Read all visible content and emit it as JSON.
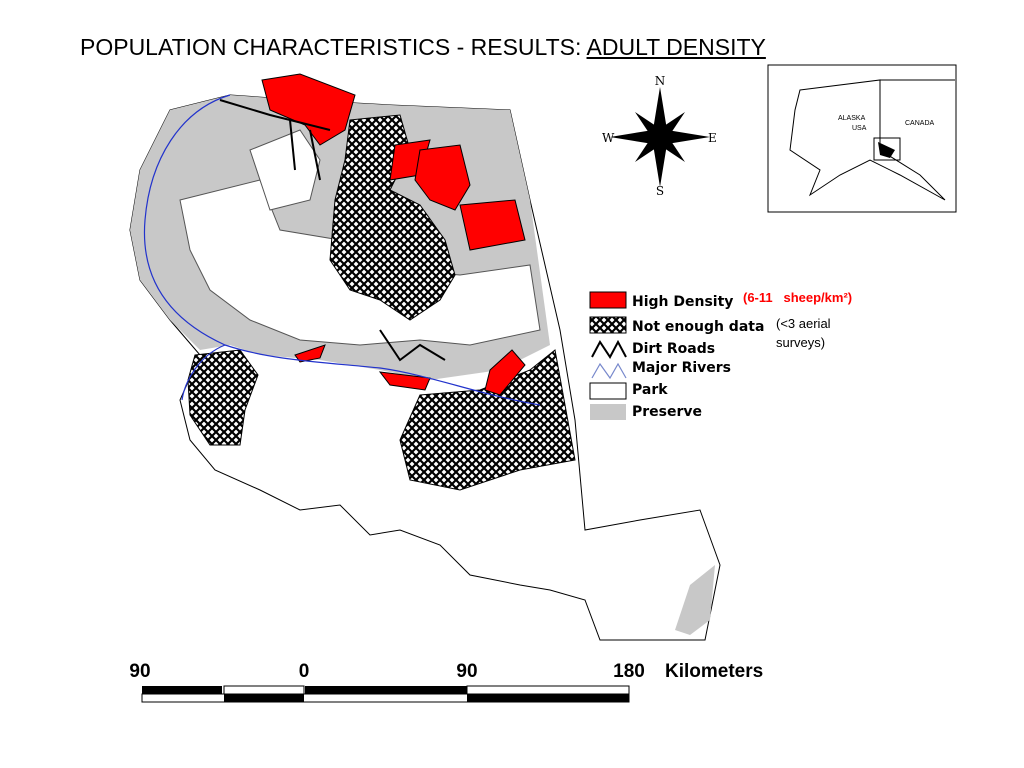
{
  "title": {
    "prefix": "POPULATION CHARACTERISTICS  - RESULTS: ",
    "emphasis": "ADULT DENSITY"
  },
  "compass": {
    "north": "N",
    "south": "S",
    "east": "E",
    "west": "W"
  },
  "inset": {
    "region": "ALASKA",
    "country": "USA",
    "neighbor": "CANADA"
  },
  "legend": {
    "items": [
      "High Density",
      "Not enough data",
      "Dirt Roads",
      "Major Rivers",
      "Park",
      "Preserve"
    ],
    "high_density_note": "(6-11   sheep/km²)",
    "no_data_note": "(<3 aerial surveys)"
  },
  "scale": {
    "labels": [
      "90",
      "0",
      "90",
      "180"
    ],
    "unit": "Kilometers"
  }
}
